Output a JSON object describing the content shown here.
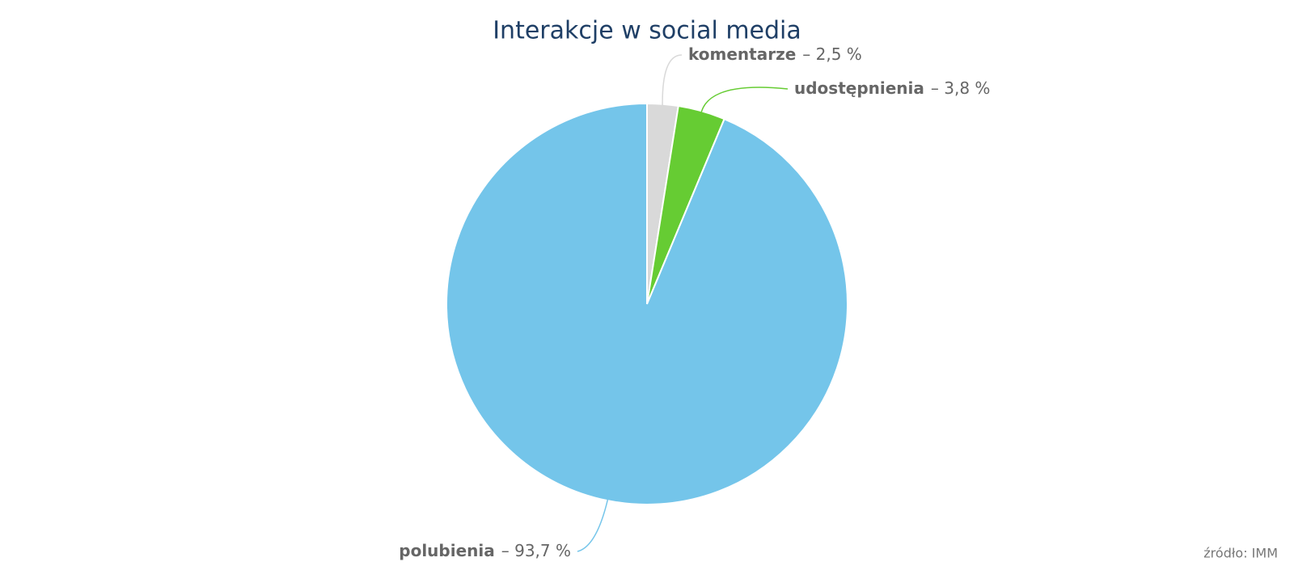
{
  "chart_data": {
    "type": "pie",
    "title": "Interakcje w social media",
    "categories": [
      "komentarze",
      "udostępnienia",
      "polubienia"
    ],
    "values": [
      2.5,
      3.8,
      93.7
    ],
    "value_labels": [
      "– 2,5 %",
      "– 3,8 %",
      "– 93,7 %"
    ],
    "colors": [
      "#d9d9d9",
      "#66cc33",
      "#74c5ea"
    ],
    "source": "źródło: IMM"
  }
}
